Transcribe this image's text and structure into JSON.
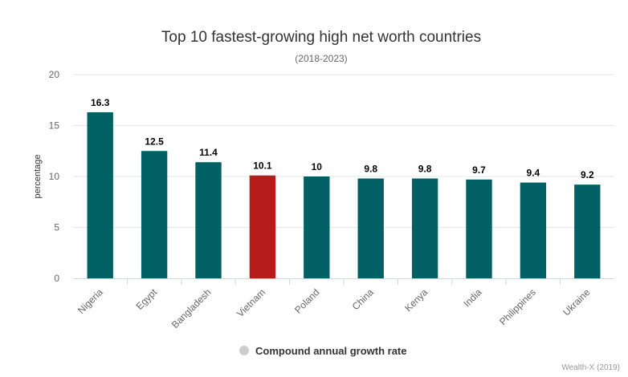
{
  "chart_data": {
    "type": "bar",
    "title": "Top 10 fastest-growing high net worth countries",
    "subtitle": "(2018-2023)",
    "ylabel": "percentage",
    "xlabel": "",
    "ylim": [
      0,
      20
    ],
    "yticks": [
      0,
      5,
      10,
      15,
      20
    ],
    "categories": [
      "Nigeria",
      "Egypt",
      "Bangladesh",
      "Vietnam",
      "Poland",
      "China",
      "Kenya",
      "India",
      "Philippines",
      "Ukraine"
    ],
    "series": [
      {
        "name": "Compound annual growth rate",
        "values": [
          16.3,
          12.5,
          11.4,
          10.1,
          10,
          9.8,
          9.8,
          9.7,
          9.4,
          9.2
        ]
      }
    ],
    "colors": {
      "bar": "#006064",
      "highlight": "#b71c1c",
      "legend_marker": "#cccccc"
    },
    "highlight_category": "Vietnam",
    "grid": true,
    "legend_placement": "bottom-center",
    "credit": "Wealth-X (2019)"
  }
}
